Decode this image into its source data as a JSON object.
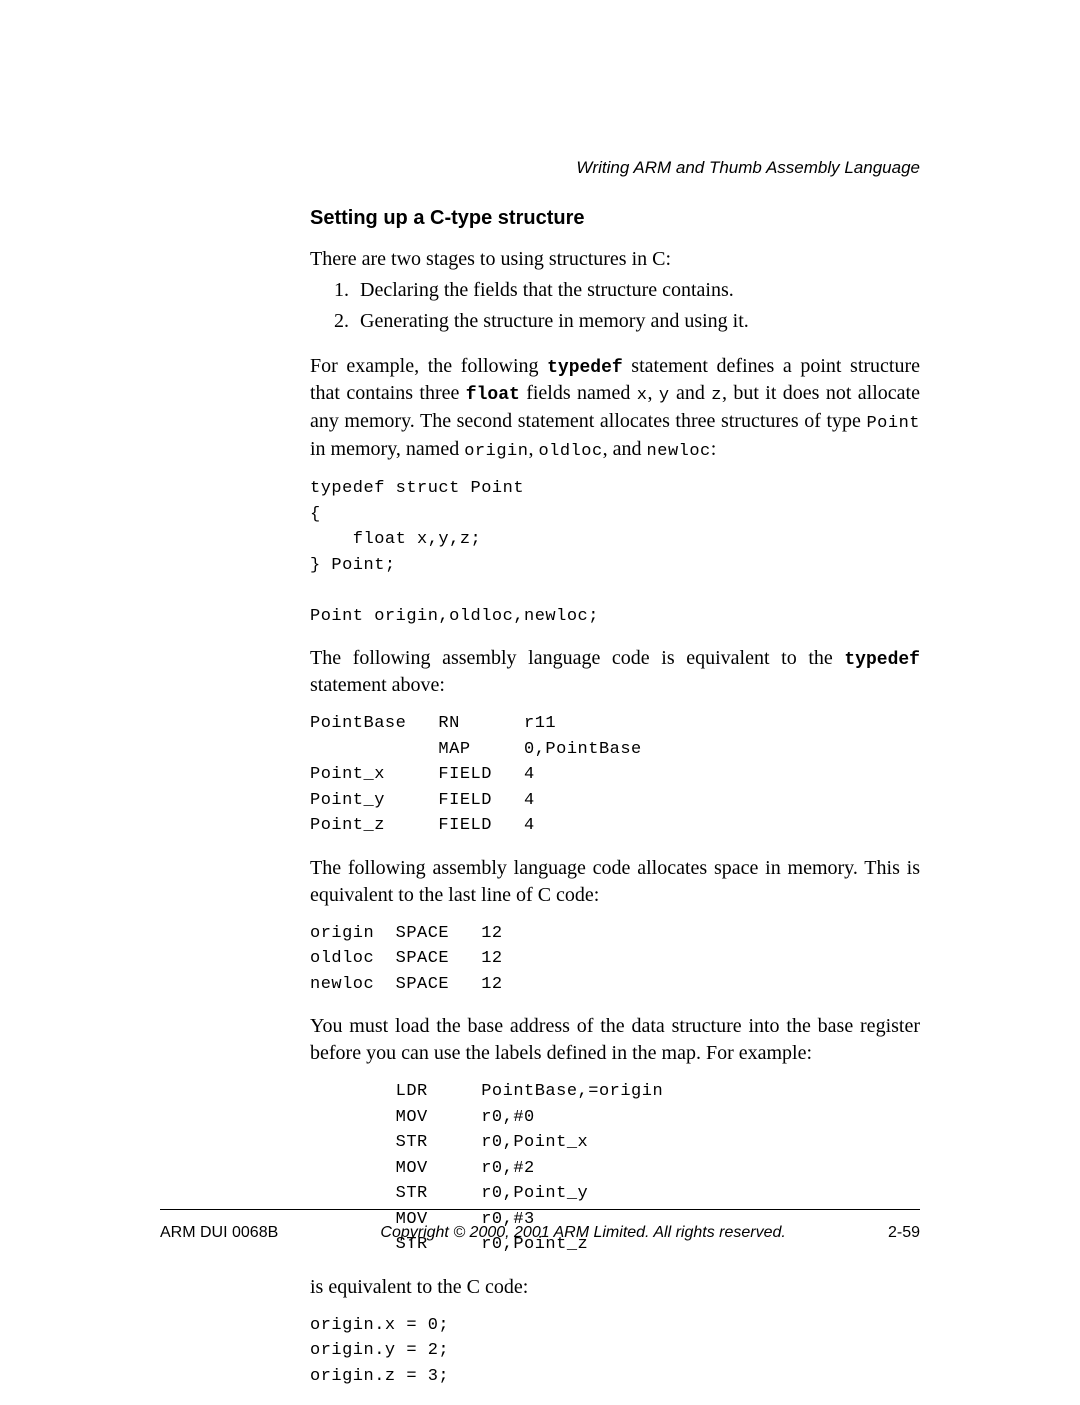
{
  "running_head": "Writing ARM and Thumb Assembly Language",
  "section_heading": "Setting up a C-type structure",
  "p1": "There are two stages to using structures in C:",
  "list": [
    "Declaring the fields that the structure contains.",
    "Generating the structure in memory and using it."
  ],
  "p2a": "For example, the following ",
  "p2_key1": "typedef",
  "p2b": " statement defines a point structure that contains three ",
  "p2_key2": "float",
  "p2c": " fields named ",
  "p2_x": "x",
  "p2d": ", ",
  "p2_y": "y",
  "p2e": " and ",
  "p2_z": "z",
  "p2f": ", but it does not allocate any memory. The second statement allocates three structures of type ",
  "p2_point": "Point",
  "p2g": " in memory, named ",
  "p2_origin": "origin",
  "p2h": ", ",
  "p2_oldloc": "oldloc",
  "p2i": ", and ",
  "p2_newloc": "newloc",
  "p2j": ":",
  "code1": "typedef struct Point\n{\n    float x,y,z;\n} Point;\n\nPoint origin,oldloc,newloc;",
  "p3a": "The following assembly language code is equivalent to the ",
  "p3_key": "typedef",
  "p3b": " statement above:",
  "code2": "PointBase   RN      r11\n            MAP     0,PointBase\nPoint_x     FIELD   4\nPoint_y     FIELD   4\nPoint_z     FIELD   4",
  "p4": "The following assembly language code allocates space in memory. This is equivalent to the last line of C code:",
  "code3": "origin  SPACE   12\noldloc  SPACE   12\nnewloc  SPACE   12",
  "p5": "You must load the base address of the data structure into the base register before you can use the labels defined in the map. For example:",
  "code4": "        LDR     PointBase,=origin\n        MOV     r0,#0\n        STR     r0,Point_x\n        MOV     r0,#2\n        STR     r0,Point_y\n        MOV     r0,#3\n        STR     r0,Point_z",
  "p6": "is equivalent to the C code:",
  "code5": "origin.x = 0;\norigin.y = 2;\norigin.z = 3;",
  "footer": {
    "left": "ARM DUI 0068B",
    "center": "Copyright © 2000, 2001 ARM Limited. All rights reserved.",
    "right": "2-59"
  }
}
